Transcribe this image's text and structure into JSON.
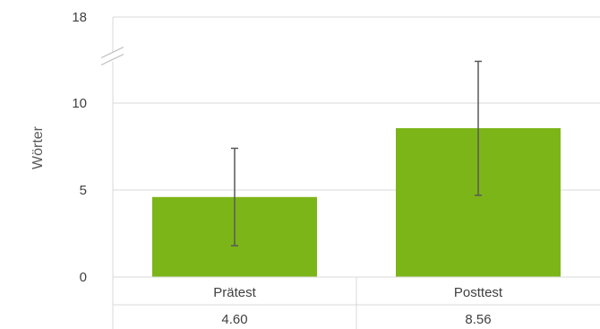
{
  "chart_data": {
    "type": "bar",
    "title": "",
    "xlabel": "",
    "ylabel": "Wörter",
    "categories": [
      "Prätest",
      "Posttest"
    ],
    "series": [
      {
        "values": [
          4.6,
          8.56
        ],
        "value_labels": [
          "4.60",
          "8.56"
        ],
        "error_upper": [
          7.4,
          12.4
        ],
        "error_lower": [
          1.8,
          4.7
        ]
      }
    ],
    "ylim": [
      0,
      18
    ],
    "yticks": [
      0,
      5,
      10,
      18
    ],
    "axis_break": {
      "from": 12.5,
      "to": 18
    },
    "grid": true,
    "legend": "none",
    "data_table": true
  },
  "colors": {
    "bar": "#7cb518",
    "gridline": "#d9d9d9",
    "error_bar": "#595959",
    "text": "#404040"
  }
}
